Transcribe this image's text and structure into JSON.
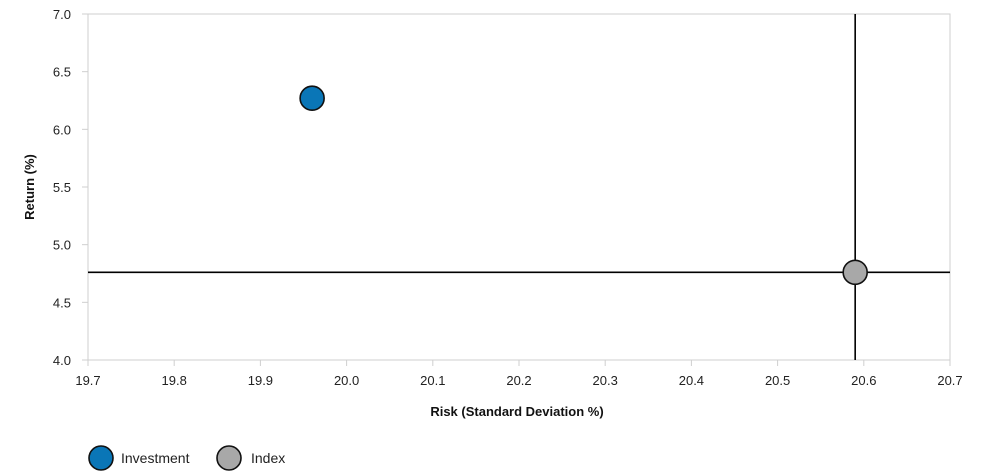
{
  "chart_data": {
    "type": "scatter",
    "xlabel": "Risk (Standard Deviation %)",
    "ylabel": "Return (%)",
    "xlim": [
      19.7,
      20.7
    ],
    "ylim": [
      4.0,
      7.0
    ],
    "xticks": [
      "19.7",
      "19.8",
      "19.9",
      "20.0",
      "20.1",
      "20.2",
      "20.3",
      "20.4",
      "20.5",
      "20.6",
      "20.7"
    ],
    "yticks": [
      "4.0",
      "4.5",
      "5.0",
      "5.5",
      "6.0",
      "6.5",
      "7.0"
    ],
    "grid": false,
    "legend_position": "bottom-left",
    "series": [
      {
        "name": "Investment",
        "x": 19.96,
        "y": 6.27,
        "color": "#0a76b7"
      },
      {
        "name": "Index",
        "x": 20.59,
        "y": 4.76,
        "color": "#a8a8a8"
      }
    ],
    "crosshair": {
      "x": 20.59,
      "y": 4.76,
      "color": "#000000"
    }
  },
  "legend": {
    "items": [
      {
        "label": "Investment",
        "color": "#0a76b7"
      },
      {
        "label": "Index",
        "color": "#a8a8a8"
      }
    ]
  }
}
